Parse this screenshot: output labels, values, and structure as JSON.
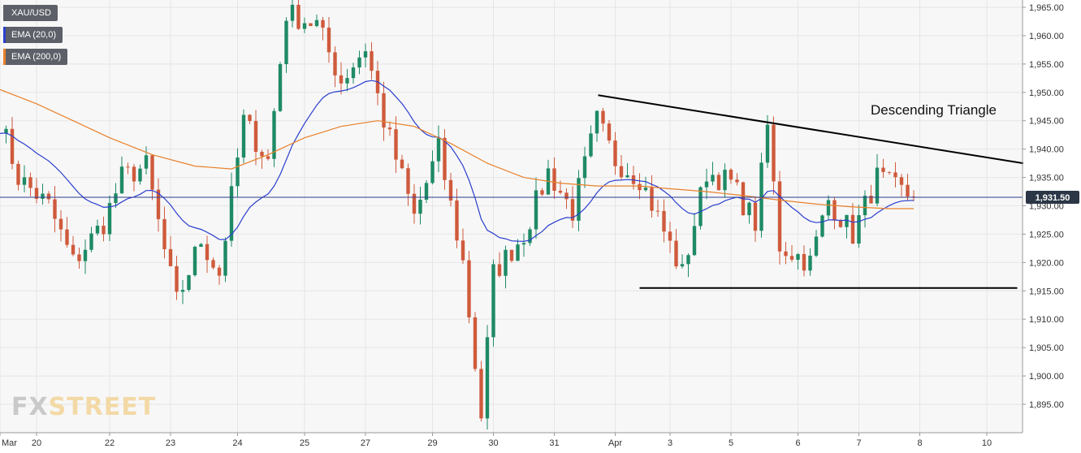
{
  "legend": {
    "symbol": "XAU/USD",
    "ema_fast": "EMA (20,0)",
    "ema_slow": "EMA (200,0)"
  },
  "watermark": {
    "part1": "FX",
    "part2": "STREET"
  },
  "colors": {
    "bull": "#1e8a64",
    "bear": "#cf5a3c",
    "ema_fast": "#2a3fcf",
    "ema_slow": "#e8802a",
    "price_line": "#2c3e8f",
    "annotation": "#000000",
    "grid": "#e6e6e6"
  },
  "chart_data": {
    "type": "candlestick",
    "symbol": "XAU/USD",
    "y_axis": {
      "min": 1891,
      "max": 1967,
      "ticks": [
        "1,965.00",
        "1,960.00",
        "1,955.00",
        "1,950.00",
        "1,945.00",
        "1,940.00",
        "1,935.00",
        "1,930.00",
        "1,925.00",
        "1,920.00",
        "1,915.00",
        "1,910.00",
        "1,905.00",
        "1,900.00",
        "1,895.00"
      ],
      "tick_values": [
        1965,
        1960,
        1955,
        1950,
        1945,
        1940,
        1935,
        1930,
        1925,
        1920,
        1915,
        1910,
        1905,
        1900,
        1895
      ]
    },
    "x_axis": {
      "labels": [
        "Mar",
        "20",
        "22",
        "23",
        "24",
        "25",
        "27",
        "29",
        "30",
        "31",
        "Apr",
        "3",
        "5",
        "6",
        "7",
        "8",
        "10"
      ],
      "label_positions": [
        0,
        6,
        18,
        28,
        39,
        50,
        60,
        71,
        81,
        91,
        101,
        110,
        120,
        131,
        141,
        151,
        162
      ]
    },
    "current_price": {
      "label": "1,931.50",
      "value": 1931.5
    },
    "path_bars": 150,
    "price_path": [
      [
        0,
        1945
      ],
      [
        3,
        1935
      ],
      [
        8,
        1930
      ],
      [
        12,
        1920
      ],
      [
        17,
        1927
      ],
      [
        20,
        1935
      ],
      [
        24,
        1937
      ],
      [
        27,
        1922
      ],
      [
        29,
        1913
      ],
      [
        33,
        1924
      ],
      [
        36,
        1918
      ],
      [
        40,
        1945
      ],
      [
        44,
        1938
      ],
      [
        47,
        1964
      ],
      [
        52,
        1962
      ],
      [
        56,
        1952
      ],
      [
        60,
        1958
      ],
      [
        63,
        1945
      ],
      [
        66,
        1935
      ],
      [
        68,
        1928
      ],
      [
        72,
        1940
      ],
      [
        76,
        1920
      ],
      [
        79,
        1893
      ],
      [
        81,
        1918
      ],
      [
        86,
        1925
      ],
      [
        90,
        1936
      ],
      [
        94,
        1929
      ],
      [
        98,
        1945
      ],
      [
        101,
        1938
      ],
      [
        105,
        1935
      ],
      [
        108,
        1928
      ],
      [
        112,
        1918
      ],
      [
        116,
        1936
      ],
      [
        120,
        1934
      ],
      [
        124,
        1927
      ],
      [
        126,
        1944
      ],
      [
        128,
        1923
      ],
      [
        133,
        1920
      ],
      [
        136,
        1931
      ],
      [
        140,
        1925
      ],
      [
        144,
        1935
      ],
      [
        147,
        1933
      ],
      [
        150,
        1931.5
      ]
    ],
    "series": [
      {
        "name": "EMA (20,0)",
        "kind": "ema",
        "period": 20
      },
      {
        "name": "EMA (200,0)",
        "kind": "polyline",
        "points": [
          [
            0,
            1950.5
          ],
          [
            6,
            1948
          ],
          [
            12,
            1945
          ],
          [
            18,
            1942
          ],
          [
            25,
            1939
          ],
          [
            32,
            1937
          ],
          [
            38,
            1936.5
          ],
          [
            44,
            1939
          ],
          [
            50,
            1942
          ],
          [
            56,
            1944
          ],
          [
            62,
            1945
          ],
          [
            68,
            1944
          ],
          [
            74,
            1941
          ],
          [
            80,
            1937.5
          ],
          [
            86,
            1935
          ],
          [
            92,
            1934
          ],
          [
            98,
            1933.5
          ],
          [
            105,
            1933.5
          ],
          [
            110,
            1933
          ],
          [
            116,
            1932.5
          ],
          [
            122,
            1931.8
          ],
          [
            128,
            1931
          ],
          [
            134,
            1930.3
          ],
          [
            140,
            1929.8
          ],
          [
            146,
            1929.5
          ],
          [
            150,
            1929.5
          ]
        ]
      }
    ],
    "annotations": {
      "triangle_label": "Descending Triangle",
      "resistance": [
        [
          98.2,
          1949.5
        ],
        [
          168,
          1937.5
        ]
      ],
      "support": [
        [
          105,
          1915.5
        ],
        [
          167,
          1915.5
        ]
      ]
    }
  }
}
